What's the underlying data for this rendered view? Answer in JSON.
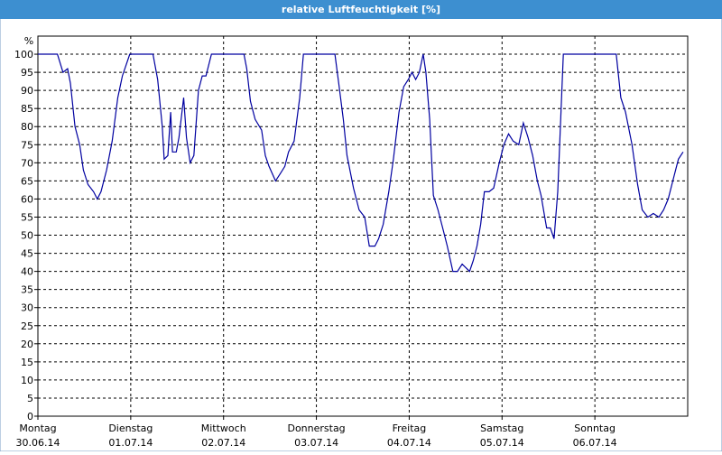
{
  "chart_data": {
    "type": "line",
    "title": "relative Luftfeuchtigkeit [%]",
    "y_label": "%",
    "xlim": [
      0,
      7
    ],
    "xticks": [
      {
        "value": 0,
        "label": "Montag",
        "date": "30.06.14"
      },
      {
        "value": 1,
        "label": "Dienstag",
        "date": "01.07.14"
      },
      {
        "value": 2,
        "label": "Mittwoch",
        "date": "02.07.14"
      },
      {
        "value": 3,
        "label": "Donnerstag",
        "date": "03.07.14"
      },
      {
        "value": 4,
        "label": "Freitag",
        "date": "04.07.14"
      },
      {
        "value": 5,
        "label": "Samstag",
        "date": "05.07.14"
      },
      {
        "value": 6,
        "label": "Sonntag",
        "date": "06.07.14"
      }
    ],
    "ylim": [
      0,
      105
    ],
    "yticks": [
      0,
      5,
      10,
      15,
      20,
      25,
      30,
      35,
      40,
      45,
      50,
      55,
      60,
      65,
      70,
      75,
      80,
      85,
      90,
      95,
      100
    ],
    "grid": true,
    "series": [
      {
        "color": "#0000a0",
        "x": [
          0,
          0.21,
          0.27,
          0.32,
          0.35,
          0.4,
          0.45,
          0.49,
          0.54,
          0.6,
          0.64,
          0.68,
          0.74,
          0.8,
          0.86,
          0.91,
          0.95,
          0.99,
          1.24,
          1.29,
          1.34,
          1.36,
          1.4,
          1.43,
          1.45,
          1.49,
          1.52,
          1.57,
          1.6,
          1.64,
          1.68,
          1.73,
          1.77,
          1.81,
          1.87,
          2.22,
          2.25,
          2.29,
          2.34,
          2.41,
          2.45,
          2.49,
          2.56,
          2.61,
          2.66,
          2.7,
          2.76,
          2.82,
          2.86,
          3.2,
          3.24,
          3.29,
          3.33,
          3.4,
          3.46,
          3.52,
          3.57,
          3.63,
          3.67,
          3.72,
          3.78,
          3.83,
          3.89,
          3.94,
          3.99,
          4.03,
          4.07,
          4.11,
          4.15,
          4.18,
          4.22,
          4.26,
          4.31,
          4.36,
          4.41,
          4.47,
          4.52,
          4.57,
          4.61,
          4.65,
          4.69,
          4.73,
          4.77,
          4.81,
          4.86,
          4.91,
          4.97,
          5.02,
          5.07,
          5.12,
          5.18,
          5.23,
          5.28,
          5.33,
          5.38,
          5.42,
          5.46,
          5.48,
          5.52,
          5.56,
          5.6,
          5.66,
          6.23,
          6.28,
          6.33,
          6.4,
          6.46,
          6.51,
          6.57,
          6.63,
          6.69,
          6.74,
          6.79,
          6.84,
          6.9,
          6.95
        ],
        "values": [
          100,
          100,
          95,
          96,
          92,
          80,
          75,
          68,
          64,
          62,
          60,
          62,
          68,
          76,
          88,
          94,
          97,
          100,
          100,
          93,
          80,
          71,
          72,
          84,
          73,
          73,
          77,
          88,
          77,
          70,
          72,
          90,
          94,
          94,
          100,
          100,
          96,
          87,
          82,
          79,
          72,
          69,
          65,
          67,
          69,
          73,
          76,
          88,
          100,
          100,
          92,
          82,
          72,
          63,
          57,
          55,
          47,
          47,
          49,
          53,
          62,
          71,
          84,
          91,
          93,
          95,
          93,
          95,
          100,
          95,
          82,
          61,
          57,
          52,
          47,
          40,
          40,
          42,
          41,
          40,
          43,
          47,
          53,
          62,
          62,
          63,
          70,
          75,
          78,
          76,
          75,
          81,
          77,
          72,
          65,
          61,
          55,
          52,
          52,
          49,
          62,
          100,
          100,
          88,
          84,
          75,
          64,
          57,
          55,
          56,
          55,
          57,
          60,
          65,
          71,
          73
        ]
      }
    ]
  }
}
